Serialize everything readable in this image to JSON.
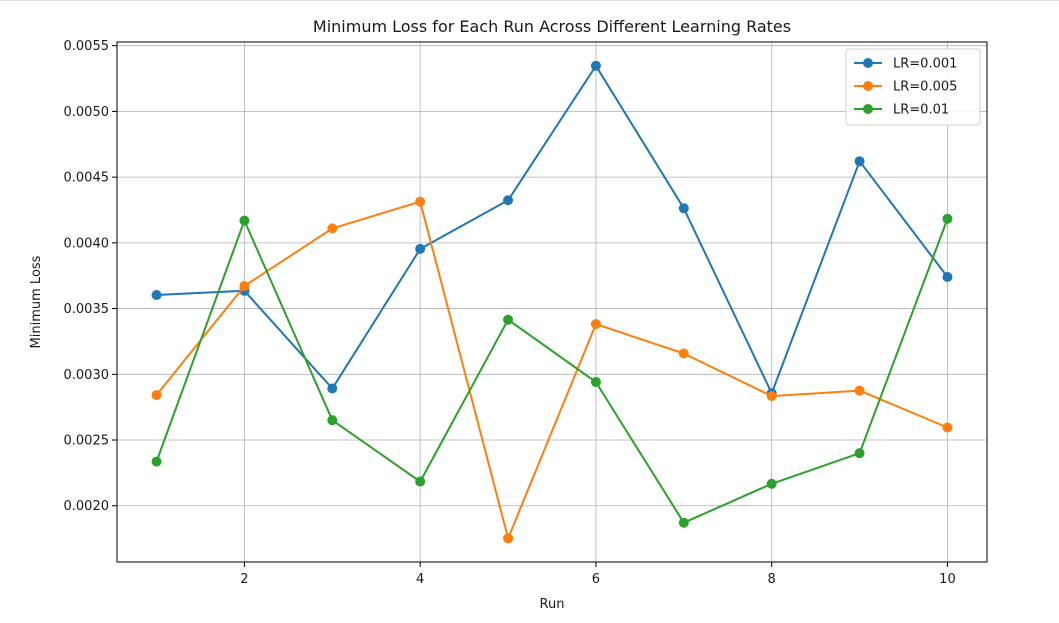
{
  "chart_data": {
    "type": "line",
    "title": "Minimum Loss for Each Run Across Different Learning Rates",
    "xlabel": "Run",
    "ylabel": "Minimum Loss",
    "x": [
      1,
      2,
      3,
      4,
      5,
      6,
      7,
      8,
      9,
      10
    ],
    "xticks": [
      2,
      4,
      6,
      8,
      10
    ],
    "yticks": [
      0.002,
      0.0025,
      0.003,
      0.0035,
      0.004,
      0.0045,
      0.005,
      0.0055
    ],
    "ytick_labels": [
      "0.0020",
      "0.0025",
      "0.0030",
      "0.0035",
      "0.0040",
      "0.0045",
      "0.0050",
      "0.0055"
    ],
    "xlim": [
      0.55,
      10.45
    ],
    "ylim": [
      0.001572,
      0.005528
    ],
    "grid": true,
    "legend_position": "top-right",
    "marker": "circle",
    "series": [
      {
        "name": "LR=0.001",
        "color": "#1f77b4",
        "values": [
          0.003603,
          0.003635,
          0.002892,
          0.003954,
          0.004324,
          0.005347,
          0.004263,
          0.002856,
          0.004621,
          0.00374
        ]
      },
      {
        "name": "LR=0.005",
        "color": "#ff7f0e",
        "values": [
          0.002842,
          0.003672,
          0.00411,
          0.004313,
          0.001752,
          0.003382,
          0.003158,
          0.002834,
          0.002876,
          0.002595
        ]
      },
      {
        "name": "LR=0.01",
        "color": "#2ca02c",
        "values": [
          0.002336,
          0.004169,
          0.002651,
          0.002184,
          0.003415,
          0.002941,
          0.001871,
          0.002167,
          0.0024,
          0.004183
        ]
      }
    ]
  }
}
